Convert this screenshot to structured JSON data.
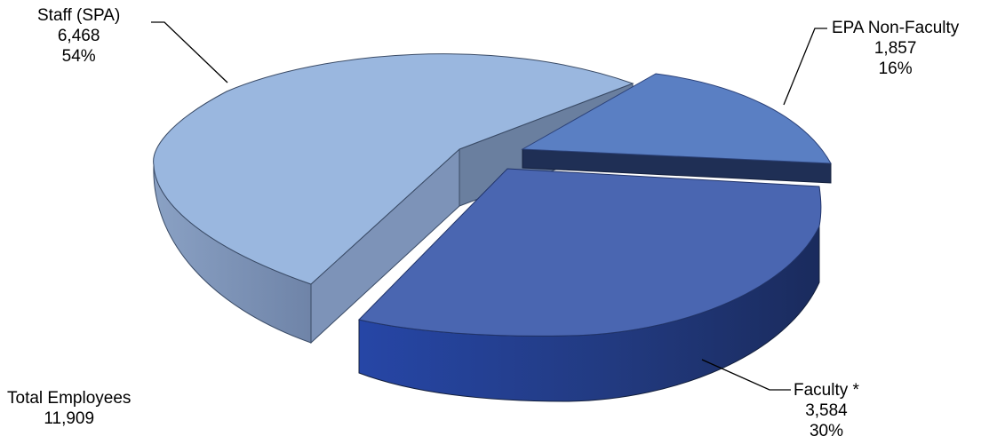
{
  "chart_data": {
    "type": "pie",
    "style": "3d-exploded",
    "slices": [
      {
        "label": "Staff (SPA)",
        "value": 6468,
        "value_text": "6,468",
        "percent": 54,
        "percent_text": "54%",
        "color": "#9ab7df"
      },
      {
        "label": "EPA Non-Faculty",
        "value": 1857,
        "value_text": "1,857",
        "percent": 16,
        "percent_text": "16%",
        "color": "#5a7fc3"
      },
      {
        "label": "Faculty *",
        "value": 3584,
        "value_text": "3,584",
        "percent": 30,
        "percent_text": "30%",
        "color": "#4a66b1"
      }
    ],
    "annotation": {
      "label": "Total Employees",
      "value_text": "11,909"
    }
  }
}
